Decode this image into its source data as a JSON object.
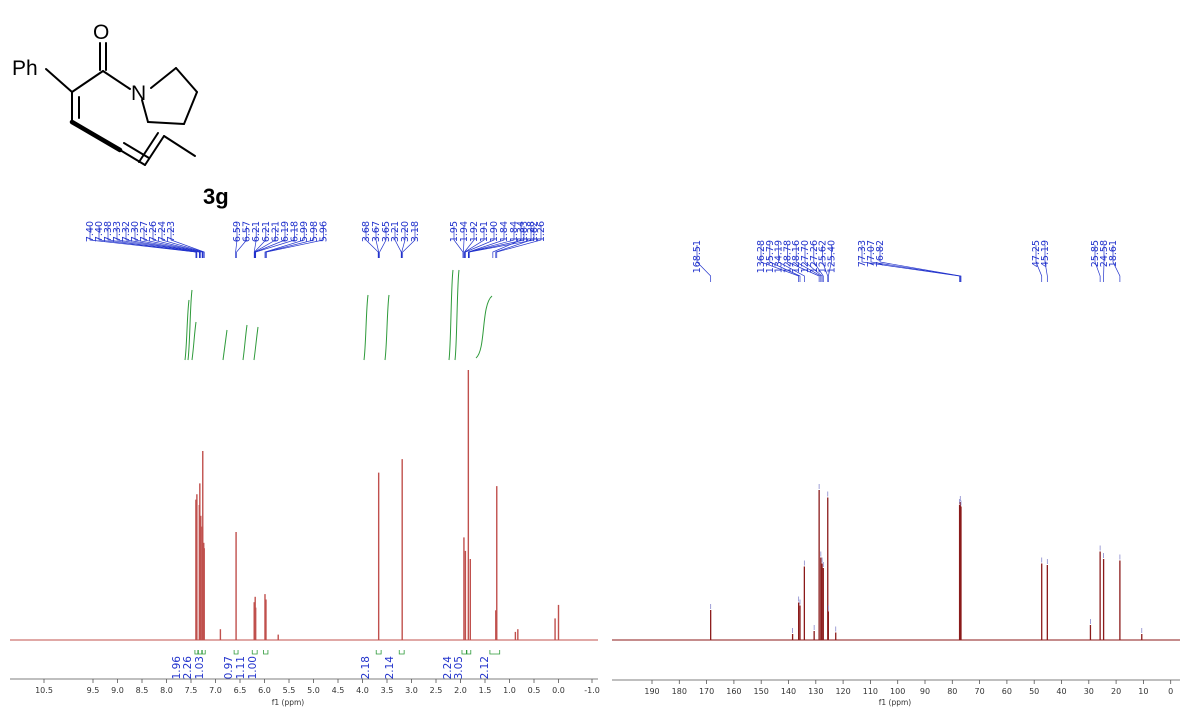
{
  "compound": {
    "label": "3g",
    "atoms": {
      "phenyl": "Ph",
      "oxygen": "O",
      "nitrogen": "N"
    }
  },
  "colors": {
    "h_spectrum": "#c0504d",
    "c_spectrum": "#8b1a1a",
    "peak_label": "#2233cc",
    "integral": "#2e9a3a"
  },
  "chart_data": [
    {
      "type": "line",
      "name_hint": "1H NMR",
      "xlabel": "f1 (ppm)",
      "xlim": [
        11.0,
        -1.0
      ],
      "x_reversed": true,
      "ticks": [
        "10.5",
        "9.5",
        "9.0",
        "8.5",
        "8.0",
        "7.5",
        "7.0",
        "6.5",
        "6.0",
        "5.5",
        "5.0",
        "4.5",
        "4.0",
        "3.5",
        "3.0",
        "2.5",
        "2.0",
        "1.5",
        "1.0",
        "0.5",
        "0.0",
        "-1.0"
      ],
      "tick_values": [
        10.5,
        9.5,
        9.0,
        8.5,
        8.0,
        7.5,
        7.0,
        6.5,
        6.0,
        5.5,
        5.0,
        4.5,
        4.0,
        3.5,
        3.0,
        2.5,
        2.0,
        1.5,
        1.0,
        0.5,
        0.0,
        -1.0
      ],
      "peak_labels": [
        {
          "label": "7.40",
          "value": 7.4
        },
        {
          "label": "7.40",
          "value": 7.395
        },
        {
          "label": "7.38",
          "value": 7.38
        },
        {
          "label": "7.33",
          "value": 7.33
        },
        {
          "label": "7.32",
          "value": 7.32
        },
        {
          "label": "7.30",
          "value": 7.3
        },
        {
          "label": "7.27",
          "value": 7.27
        },
        {
          "label": "7.26",
          "value": 7.26
        },
        {
          "label": "7.24",
          "value": 7.24
        },
        {
          "label": "7.23",
          "value": 7.23
        },
        {
          "label": "6.59",
          "value": 6.59
        },
        {
          "label": "6.57",
          "value": 6.57
        },
        {
          "label": "6.21",
          "value": 6.21
        },
        {
          "label": "6.21",
          "value": 6.205
        },
        {
          "label": "6.21",
          "value": 6.2
        },
        {
          "label": "6.19",
          "value": 6.19
        },
        {
          "label": "6.18",
          "value": 6.18
        },
        {
          "label": "5.99",
          "value": 5.99
        },
        {
          "label": "5.98",
          "value": 5.98
        },
        {
          "label": "5.96",
          "value": 5.96
        },
        {
          "label": "3.68",
          "value": 3.68
        },
        {
          "label": "3.67",
          "value": 3.67
        },
        {
          "label": "3.65",
          "value": 3.65
        },
        {
          "label": "3.21",
          "value": 3.21
        },
        {
          "label": "3.20",
          "value": 3.2
        },
        {
          "label": "3.18",
          "value": 3.18
        },
        {
          "label": "1.95",
          "value": 1.95
        },
        {
          "label": "1.94",
          "value": 1.94
        },
        {
          "label": "1.92",
          "value": 1.92
        },
        {
          "label": "1.91",
          "value": 1.91
        },
        {
          "label": "1.90",
          "value": 1.9
        },
        {
          "label": "1.84",
          "value": 1.84
        },
        {
          "label": "1.84",
          "value": 1.835
        },
        {
          "label": "1.83",
          "value": 1.83
        },
        {
          "label": "1.82",
          "value": 1.82
        },
        {
          "label": "1.34",
          "value": 1.34
        },
        {
          "label": "1.28",
          "value": 1.28
        },
        {
          "label": "1.26",
          "value": 1.26
        }
      ],
      "integrals": [
        {
          "label": "1.96",
          "value": 7.39,
          "from": 7.42,
          "to": 7.36
        },
        {
          "label": "2.26",
          "value": 7.31,
          "from": 7.35,
          "to": 7.28
        },
        {
          "label": "1.03",
          "value": 7.24,
          "from": 7.27,
          "to": 7.21
        },
        {
          "label": "0.97",
          "value": 6.58,
          "from": 6.62,
          "to": 6.54
        },
        {
          "label": "1.11",
          "value": 6.2,
          "from": 6.25,
          "to": 6.15
        },
        {
          "label": "1.00",
          "value": 5.97,
          "from": 6.02,
          "to": 5.93
        },
        {
          "label": "2.18",
          "value": 3.67,
          "from": 3.72,
          "to": 3.62
        },
        {
          "label": "2.14",
          "value": 3.2,
          "from": 3.25,
          "to": 3.15
        },
        {
          "label": "2.24",
          "value": 1.93,
          "from": 1.97,
          "to": 1.88
        },
        {
          "label": "3.05",
          "value": 1.83,
          "from": 1.87,
          "to": 1.79
        },
        {
          "label": "2.12",
          "value": 1.29,
          "from": 1.4,
          "to": 1.2
        }
      ],
      "peaks": [
        {
          "x": 7.4,
          "y": 0.52
        },
        {
          "x": 7.38,
          "y": 0.54
        },
        {
          "x": 7.33,
          "y": 0.5
        },
        {
          "x": 7.32,
          "y": 0.58
        },
        {
          "x": 7.3,
          "y": 0.46
        },
        {
          "x": 7.27,
          "y": 0.42
        },
        {
          "x": 7.26,
          "y": 0.7
        },
        {
          "x": 7.24,
          "y": 0.36
        },
        {
          "x": 7.23,
          "y": 0.34
        },
        {
          "x": 6.9,
          "y": 0.04
        },
        {
          "x": 6.58,
          "y": 0.4
        },
        {
          "x": 6.21,
          "y": 0.14
        },
        {
          "x": 6.19,
          "y": 0.16
        },
        {
          "x": 6.18,
          "y": 0.12
        },
        {
          "x": 5.99,
          "y": 0.17
        },
        {
          "x": 5.97,
          "y": 0.15
        },
        {
          "x": 5.72,
          "y": 0.02
        },
        {
          "x": 3.67,
          "y": 0.62
        },
        {
          "x": 3.19,
          "y": 0.67
        },
        {
          "x": 1.93,
          "y": 0.38
        },
        {
          "x": 1.9,
          "y": 0.33
        },
        {
          "x": 1.84,
          "y": 1.0
        },
        {
          "x": 1.8,
          "y": 0.3
        },
        {
          "x": 1.28,
          "y": 0.11
        },
        {
          "x": 1.26,
          "y": 0.57
        },
        {
          "x": 0.88,
          "y": 0.03
        },
        {
          "x": 0.83,
          "y": 0.04
        },
        {
          "x": 0.07,
          "y": 0.08
        },
        {
          "x": 0.0,
          "y": 0.13
        }
      ]
    },
    {
      "type": "line",
      "name_hint": "13C NMR",
      "xlabel": "f1 (ppm)",
      "xlim": [
        197,
        -3
      ],
      "x_reversed": true,
      "ticks": [
        "190",
        "180",
        "170",
        "160",
        "150",
        "140",
        "130",
        "120",
        "110",
        "100",
        "90",
        "80",
        "70",
        "60",
        "50",
        "40",
        "30",
        "20",
        "10",
        "0"
      ],
      "tick_values": [
        190,
        180,
        170,
        160,
        150,
        140,
        130,
        120,
        110,
        100,
        90,
        80,
        70,
        60,
        50,
        40,
        30,
        20,
        10,
        0
      ],
      "peak_labels": [
        {
          "label": "168.51",
          "value": 168.51
        },
        {
          "label": "136.28",
          "value": 136.28
        },
        {
          "label": "135.79",
          "value": 135.79
        },
        {
          "label": "134.19",
          "value": 134.19
        },
        {
          "label": "128.78",
          "value": 128.78
        },
        {
          "label": "128.16",
          "value": 128.16
        },
        {
          "label": "127.70",
          "value": 127.7
        },
        {
          "label": "127.26",
          "value": 127.26
        },
        {
          "label": "125.62",
          "value": 125.62
        },
        {
          "label": "125.40",
          "value": 125.4
        },
        {
          "label": "77.33",
          "value": 77.33
        },
        {
          "label": "77.07",
          "value": 77.07
        },
        {
          "label": "76.82",
          "value": 76.82
        },
        {
          "label": "47.25",
          "value": 47.25
        },
        {
          "label": "45.19",
          "value": 45.19
        },
        {
          "label": "25.85",
          "value": 25.85
        },
        {
          "label": "24.58",
          "value": 24.58
        },
        {
          "label": "18.61",
          "value": 18.61
        }
      ],
      "peaks": [
        {
          "x": 168.51,
          "y": 0.2
        },
        {
          "x": 138.5,
          "y": 0.04
        },
        {
          "x": 136.28,
          "y": 0.25
        },
        {
          "x": 135.79,
          "y": 0.23
        },
        {
          "x": 134.19,
          "y": 0.49
        },
        {
          "x": 130.6,
          "y": 0.06
        },
        {
          "x": 128.78,
          "y": 1.0
        },
        {
          "x": 128.16,
          "y": 0.55
        },
        {
          "x": 127.7,
          "y": 0.51
        },
        {
          "x": 127.26,
          "y": 0.48
        },
        {
          "x": 125.62,
          "y": 0.95
        },
        {
          "x": 125.4,
          "y": 0.19
        },
        {
          "x": 122.7,
          "y": 0.05
        },
        {
          "x": 77.33,
          "y": 0.9
        },
        {
          "x": 77.07,
          "y": 0.92
        },
        {
          "x": 76.82,
          "y": 0.89
        },
        {
          "x": 47.25,
          "y": 0.51
        },
        {
          "x": 45.19,
          "y": 0.5
        },
        {
          "x": 29.4,
          "y": 0.1
        },
        {
          "x": 25.85,
          "y": 0.59
        },
        {
          "x": 24.58,
          "y": 0.54
        },
        {
          "x": 18.61,
          "y": 0.53
        },
        {
          "x": 10.6,
          "y": 0.04
        }
      ]
    }
  ]
}
